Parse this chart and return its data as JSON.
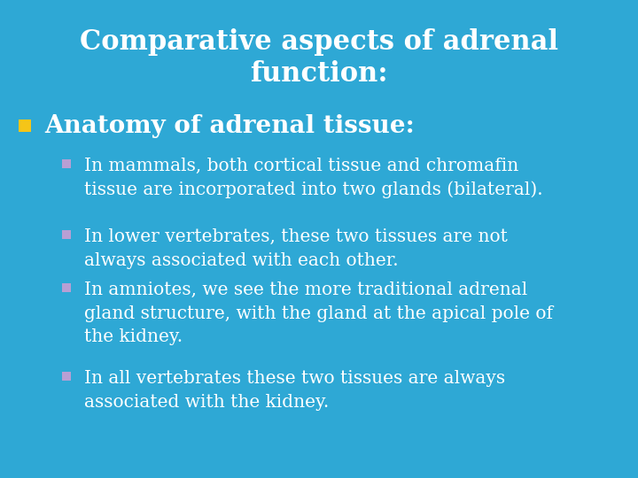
{
  "background_color": "#2ea8d5",
  "title_line1": "Comparative aspects of adrenal",
  "title_line2": "function:",
  "title_color": "#ffffff",
  "title_fontsize": 22,
  "bullet1_text": "Anatomy of adrenal tissue:",
  "bullet1_color": "#ffffff",
  "bullet1_fontsize": 20,
  "bullet1_marker_color": "#f5c518",
  "sub_bullet_marker_color": "#b89fd4",
  "sub_bullet_color": "#ffffff",
  "sub_bullet_fontsize": 14.5,
  "sub_bullets": [
    "In mammals, both cortical tissue and chromafin\ntissue are incorporated into two glands (bilateral).",
    "In lower vertebrates, these two tissues are not\nalways associated with each other.",
    "In amniotes, we see the more traditional adrenal\ngland structure, with the gland at the apical pole of\nthe kidney.",
    "In all vertebrates these two tissues are always\nassociated with the kidney."
  ]
}
